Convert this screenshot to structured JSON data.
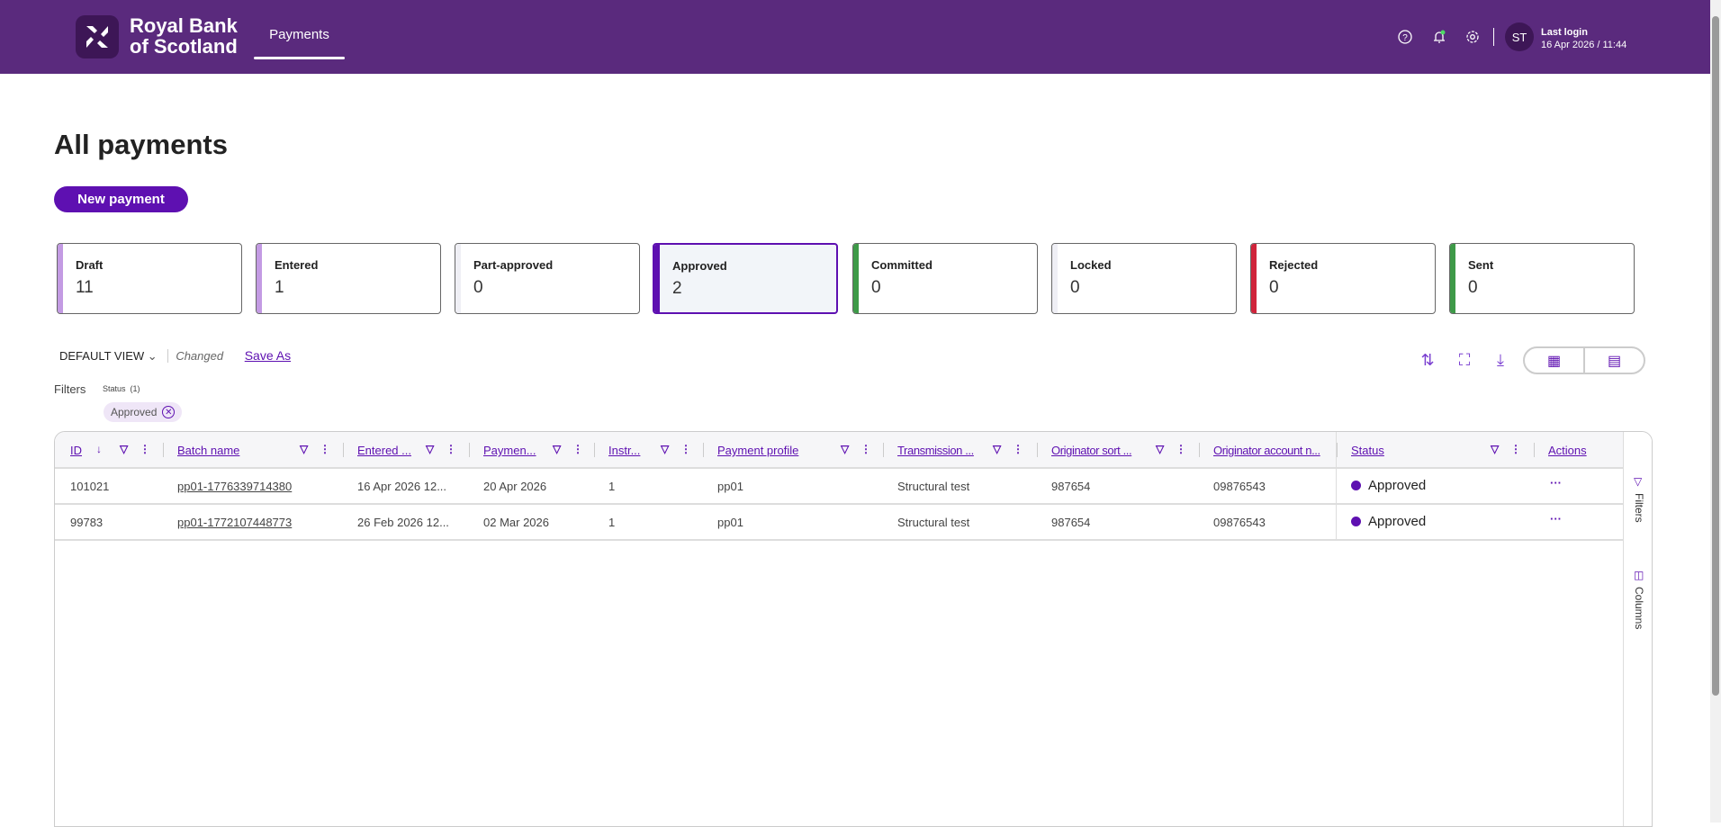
{
  "header": {
    "brand_line1": "Royal Bank",
    "brand_line2": "of Scotland",
    "nav_tab": "Payments",
    "avatar_initials": "ST",
    "last_login_label": "Last login",
    "last_login_value": "16 Apr 2026 / 11:44"
  },
  "page": {
    "title": "All payments",
    "new_payment": "New payment"
  },
  "cards": [
    {
      "label": "Draft",
      "count": "11",
      "color": "#c39be3"
    },
    {
      "label": "Entered",
      "count": "1",
      "color": "#c39be3"
    },
    {
      "label": "Part-approved",
      "count": "0",
      "color": "#efeff5"
    },
    {
      "label": "Approved",
      "count": "2",
      "color": "#5e10b1"
    },
    {
      "label": "Committed",
      "count": "0",
      "color": "#3e9a48"
    },
    {
      "label": "Locked",
      "count": "0",
      "color": "#efeff5"
    },
    {
      "label": "Rejected",
      "count": "0",
      "color": "#d0243b"
    },
    {
      "label": "Sent",
      "count": "0",
      "color": "#3e9a48"
    }
  ],
  "view": {
    "name": "DEFAULT VIEW",
    "changed": "Changed",
    "save_as": "Save As"
  },
  "filters": {
    "label": "Filters",
    "group": "Status",
    "group_count": "(1)",
    "chip": "Approved"
  },
  "table": {
    "columns": [
      "ID",
      "Batch name",
      "Entered ...",
      "Paymen...",
      "Instr...",
      "Payment profile",
      "Transmission ...",
      "Originator sort ...",
      "Originator account n...",
      "Status",
      "Actions"
    ],
    "rows": [
      [
        "101021",
        "pp01-1776339714380",
        "16 Apr 2026 12...",
        "20 Apr 2026",
        "1",
        "pp01",
        "Structural test",
        "987654",
        "09876543",
        "Approved"
      ],
      [
        "99783",
        "pp01-1772107448773",
        "26 Feb 2026 12...",
        "02 Mar 2026",
        "1",
        "pp01",
        "Structural test",
        "987654",
        "09876543",
        "Approved"
      ]
    ],
    "side_filters": "Filters",
    "side_columns": "Columns"
  }
}
